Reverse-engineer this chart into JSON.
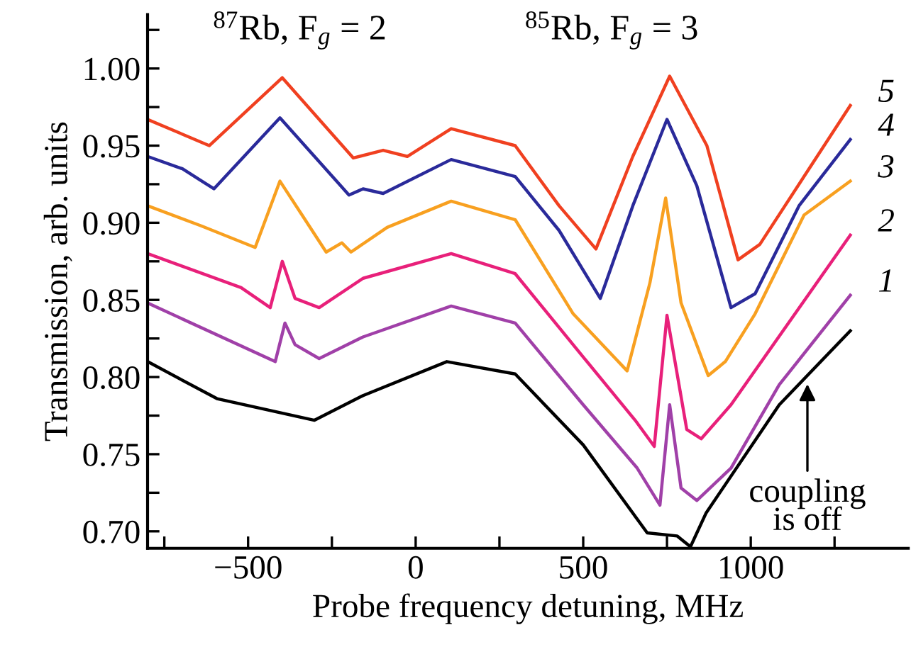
{
  "chart_data": {
    "type": "line",
    "xlabel": "Probe frequency detuning, MHz",
    "ylabel": "Transmission, arb. units",
    "xlim": [
      -800,
      1470
    ],
    "ylim": [
      0.689,
      1.035
    ],
    "xticks": [
      {
        "value": -750,
        "label": null
      },
      {
        "value": -500,
        "label": "−500"
      },
      {
        "value": -250,
        "label": null
      },
      0,
      {
        "value": 250,
        "label": null
      },
      500,
      {
        "value": 750,
        "label": null
      },
      1000,
      {
        "value": 1250,
        "label": null
      }
    ],
    "yticks": [
      {
        "value": 0.7,
        "label": "0.70"
      },
      {
        "value": 0.725,
        "label": null
      },
      0.75,
      {
        "value": 0.775,
        "label": null
      },
      {
        "value": 0.8,
        "label": "0.80"
      },
      {
        "value": 0.825,
        "label": null
      },
      0.85,
      {
        "value": 0.875,
        "label": null
      },
      {
        "value": 0.9,
        "label": "0.90"
      },
      {
        "value": 0.925,
        "label": null
      },
      0.95,
      {
        "value": 0.975,
        "label": null
      },
      {
        "value": 1.0,
        "label": "1.00"
      },
      {
        "value": 1.025,
        "label": null
      }
    ],
    "grid": false,
    "legend": false,
    "marker": "none",
    "line_style": "solid",
    "series": [
      {
        "name": "5",
        "color": "#f04020",
        "x": [
          -800,
          -616,
          -398,
          -186,
          -97,
          -25,
          106,
          297,
          428,
          538,
          648,
          758,
          869,
          962,
          1027,
          1159,
          1297
        ],
        "values": [
          0.967,
          0.95,
          0.994,
          0.942,
          0.947,
          0.943,
          0.961,
          0.95,
          0.911,
          0.883,
          0.943,
          0.995,
          0.95,
          0.876,
          0.886,
          0.93,
          0.976
        ]
      },
      {
        "name": "4",
        "color": "#2a2a9a",
        "x": [
          -800,
          -696,
          -602,
          -405,
          -199,
          -157,
          -97,
          106,
          297,
          428,
          551,
          648,
          750,
          839,
          941,
          1013,
          1144,
          1297
        ],
        "values": [
          0.943,
          0.935,
          0.922,
          0.968,
          0.918,
          0.922,
          0.919,
          0.941,
          0.93,
          0.895,
          0.851,
          0.911,
          0.967,
          0.924,
          0.845,
          0.854,
          0.911,
          0.954
        ]
      },
      {
        "name": "3",
        "color": "#f8a020",
        "x": [
          -800,
          -640,
          -479,
          -405,
          -330,
          -267,
          -220,
          -193,
          -85,
          106,
          297,
          470,
          631,
          699,
          746,
          792,
          873,
          924,
          1013,
          1159,
          1297
        ],
        "values": [
          0.911,
          0.898,
          0.884,
          0.927,
          0.902,
          0.881,
          0.887,
          0.881,
          0.897,
          0.914,
          0.902,
          0.841,
          0.804,
          0.861,
          0.916,
          0.848,
          0.801,
          0.81,
          0.841,
          0.905,
          0.927
        ]
      },
      {
        "name": "2",
        "color": "#e8207a",
        "x": [
          -800,
          -521,
          -434,
          -398,
          -360,
          -288,
          -157,
          106,
          297,
          500,
          655,
          712,
          750,
          809,
          852,
          941,
          1297
        ],
        "values": [
          0.88,
          0.858,
          0.845,
          0.875,
          0.851,
          0.845,
          0.864,
          0.88,
          0.867,
          0.813,
          0.772,
          0.755,
          0.84,
          0.766,
          0.76,
          0.782,
          0.892
        ]
      },
      {
        "name": "1",
        "color": "#a040a8",
        "x": [
          -800,
          -419,
          -390,
          -360,
          -288,
          -157,
          106,
          297,
          500,
          661,
          729,
          758,
          792,
          839,
          941,
          1085,
          1297
        ],
        "values": [
          0.848,
          0.81,
          0.835,
          0.821,
          0.812,
          0.826,
          0.846,
          0.835,
          0.782,
          0.741,
          0.717,
          0.782,
          0.728,
          0.72,
          0.741,
          0.795,
          0.853
        ]
      },
      {
        "color": "#000000",
        "x": [
          -800,
          -593,
          -302,
          -157,
          93,
          297,
          500,
          691,
          780,
          820,
          867,
          1085,
          1297
        ],
        "values": [
          0.81,
          0.786,
          0.772,
          0.788,
          0.81,
          0.802,
          0.756,
          0.699,
          0.697,
          0.69,
          0.712,
          0.782,
          0.83
        ]
      }
    ],
    "annotations": [
      "$^{87}$Rb, F$_{g}$ = 2",
      "$^{85}$Rb, F$_{g}$ = 3",
      {
        "text": "coupling\nis off",
        "x": 1169,
        "y": 0.798
      }
    ]
  }
}
